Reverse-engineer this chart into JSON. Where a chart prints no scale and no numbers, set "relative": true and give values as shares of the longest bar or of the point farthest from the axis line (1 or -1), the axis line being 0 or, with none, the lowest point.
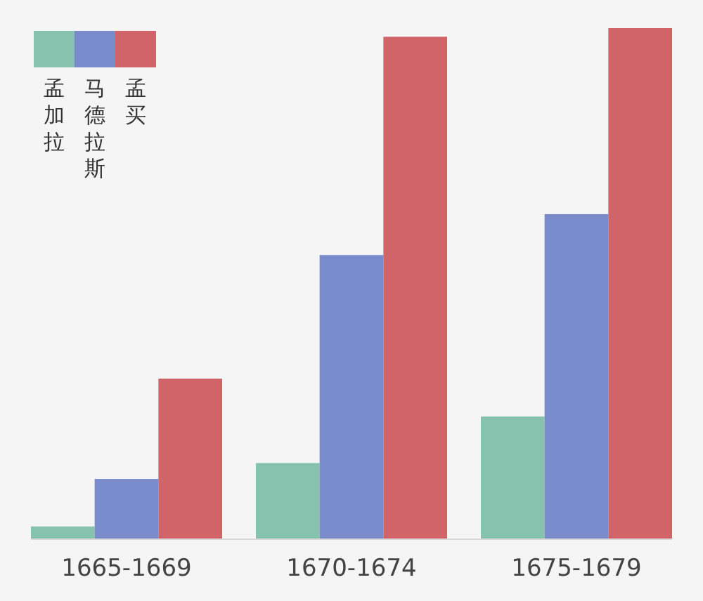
{
  "chart_data": {
    "type": "bar",
    "relative": true,
    "categories": [
      "1665-1669",
      "1670-1674",
      "1675-1679"
    ],
    "series": [
      {
        "name": "孟加拉",
        "color": "#86c2ae",
        "values": [
          0.025,
          0.149,
          0.24
        ]
      },
      {
        "name": "马德拉斯",
        "color": "#7a8bcb",
        "values": [
          0.118,
          0.556,
          0.636
        ]
      },
      {
        "name": "孟买",
        "color": "#d06468",
        "values": [
          0.314,
          0.983,
          1
        ]
      }
    ],
    "legend": "top left",
    "grid": false
  }
}
